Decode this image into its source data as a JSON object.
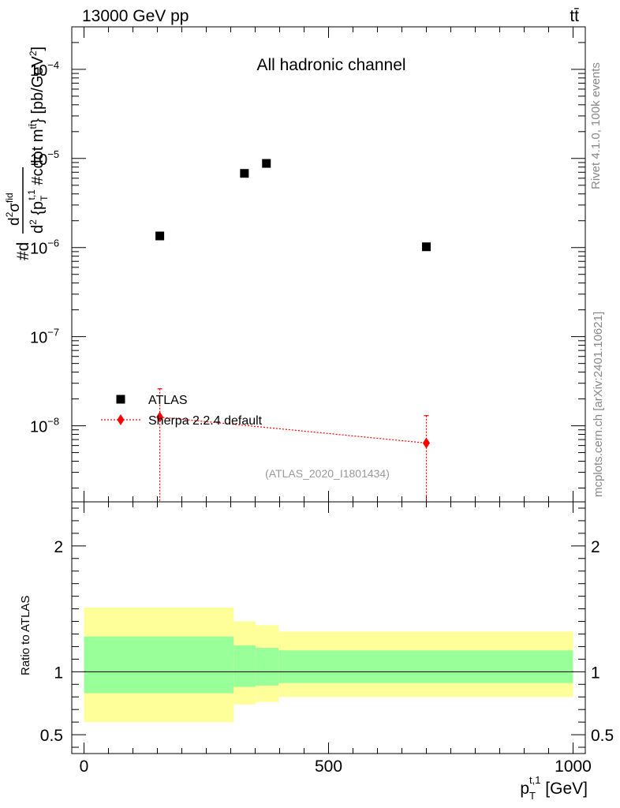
{
  "header": {
    "left": "13000 GeV pp",
    "right": "tt̄"
  },
  "side": {
    "rivet": "Rivet 4.1.0,  100k events",
    "site": "mcplots.cern.ch [arXiv:2401.10621]"
  },
  "chart_data": [
    {
      "type": "scatter",
      "title": "All hadronic channel",
      "analysis": "(ATLAS_2020_I1801434)",
      "ylabel": "#d d²σ^{fid} / d²{p_T^{t,1} #cdot m^{tt̄}} [pb/GeV²]",
      "ylabel_parts": {
        "prefix": "#d",
        "numerator": "d",
        "numerator_sup": "2",
        "sigma": "σ",
        "sigma_sup": "fid",
        "den_d": "d",
        "den_sup": "2",
        "den_open": " {p",
        "den_sub": "T",
        "den_sup2": "t,1",
        "den_cdot": " #cdot m",
        "den_sup3": "tt̄",
        "den_close": "} [pb/GeV",
        "den_unit_sup": "2",
        "den_end": "]"
      },
      "yscale": "log",
      "ylim": [
        1.4e-09,
        0.0003
      ],
      "xlim": [
        -25,
        1025
      ],
      "yticks": [
        {
          "v": 0.0001,
          "base": "10",
          "exp": "−4"
        },
        {
          "v": 1e-05,
          "base": "10",
          "exp": "−5"
        },
        {
          "v": 1e-06,
          "base": "10",
          "exp": "−6"
        },
        {
          "v": 1e-07,
          "base": "10",
          "exp": "−7"
        },
        {
          "v": 1e-08,
          "base": "10",
          "exp": "−8"
        }
      ],
      "series": [
        {
          "name": "ATLAS",
          "marker": "square",
          "color": "#000000",
          "x": [
            155,
            328,
            373,
            700
          ],
          "y": [
            1.35e-06,
            6.8e-06,
            8.8e-06,
            1.02e-06
          ]
        },
        {
          "name": "Sherpa 2.2.4 default",
          "marker": "diamond",
          "color": "#ff0000",
          "x": [
            155,
            700
          ],
          "y": [
            1.25e-08,
            6.4e-09
          ],
          "err_up": [
            2.6e-08,
            1.3e-08
          ],
          "err_down": [
            1.4e-09,
            1.4e-09
          ]
        }
      ],
      "legend": "top-left"
    },
    {
      "type": "area",
      "ylabel": "Ratio to ATLAS",
      "xlabel": "p_T^{t,1} [GeV]",
      "xlabel_parts": {
        "p": "p",
        "sub": "T",
        "sup": "t,1",
        "unit": " [GeV]"
      },
      "xlim": [
        -25,
        1025
      ],
      "ylim": [
        0.35,
        2.35
      ],
      "yticks": [
        0.5,
        1,
        2
      ],
      "xticks": [
        0,
        500,
        1000
      ],
      "bins": [
        0,
        306,
        351,
        398,
        1000
      ],
      "band_outer": [
        [
          0.6,
          1.51
        ],
        [
          0.74,
          1.4
        ],
        [
          0.76,
          1.37
        ],
        [
          0.8,
          1.32
        ]
      ],
      "band_inner": [
        [
          0.83,
          1.28
        ],
        [
          0.88,
          1.21
        ],
        [
          0.89,
          1.19
        ],
        [
          0.91,
          1.17
        ]
      ],
      "band_outer_color": "#ffff99",
      "band_inner_color": "#99ff99",
      "reference": 1
    }
  ]
}
